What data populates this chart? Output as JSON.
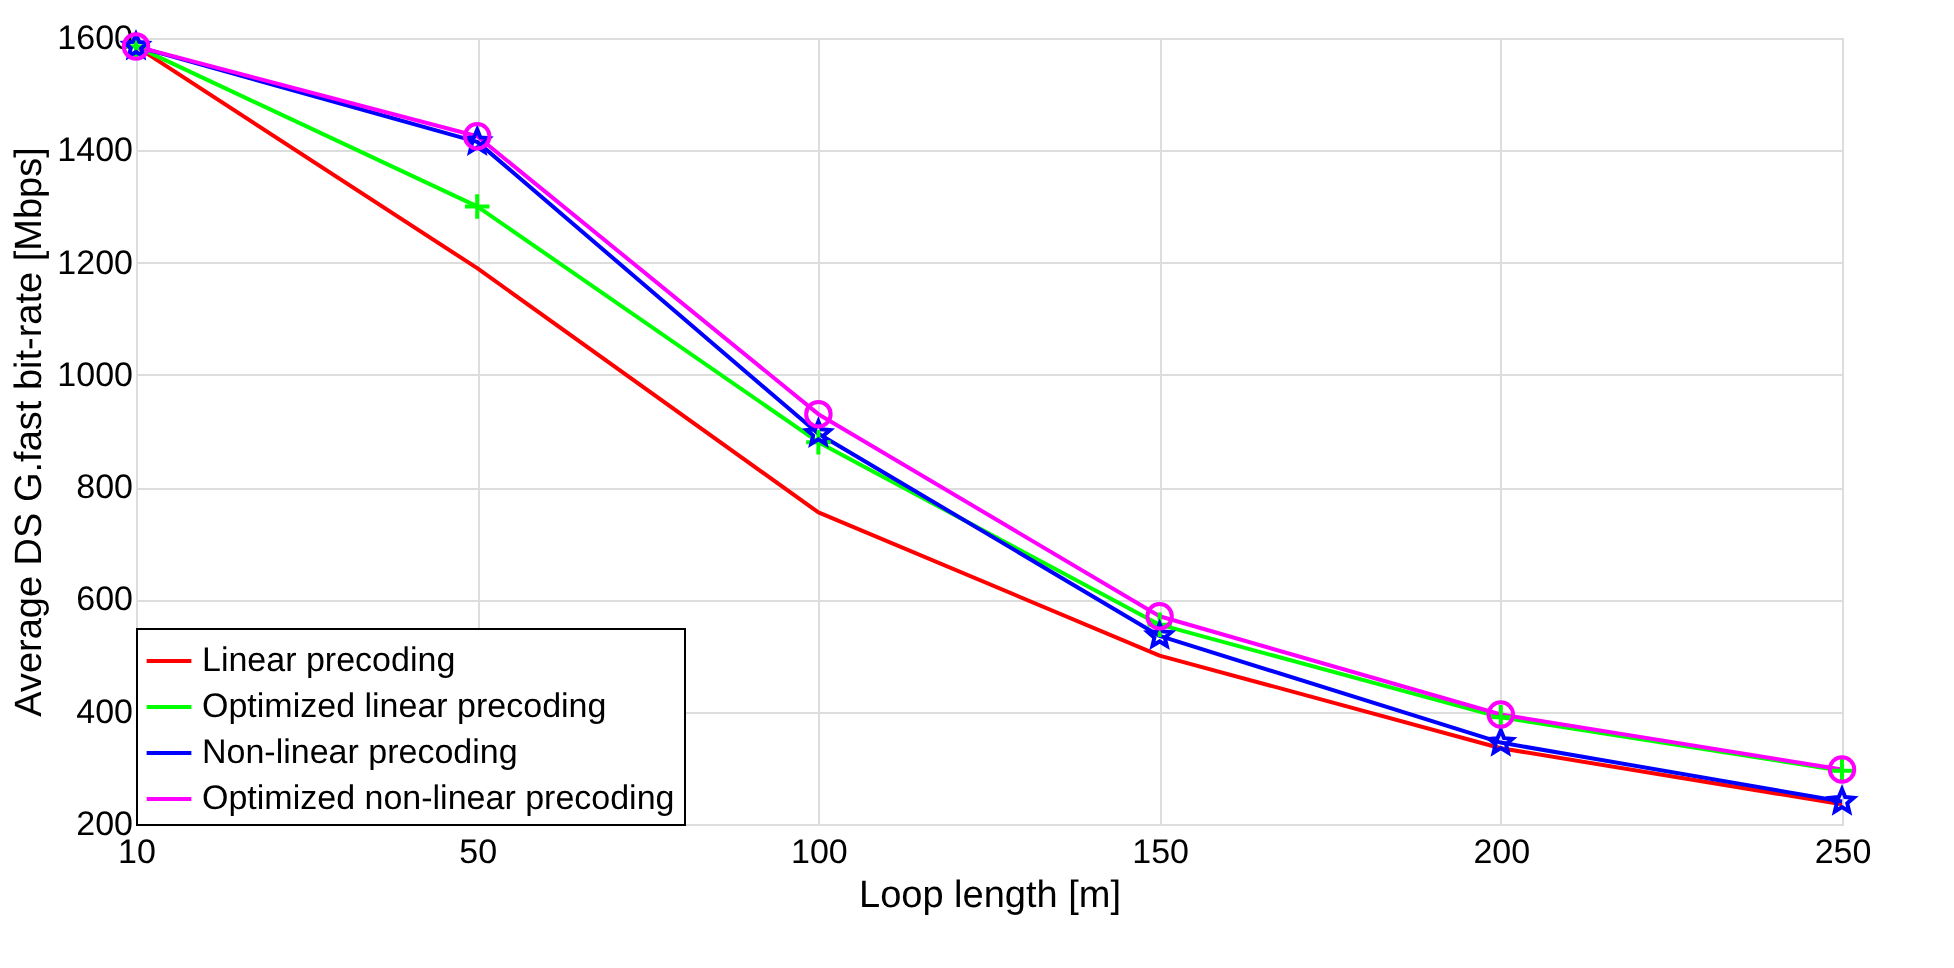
{
  "chart_data": {
    "type": "line",
    "xlabel": "Loop length [m]",
    "ylabel": "Average DS G.fast bit-rate [Mbps]",
    "categories": [
      "10",
      "50",
      "100",
      "150",
      "200",
      "250"
    ],
    "ylim": [
      200,
      1600
    ],
    "yticks": [
      200,
      400,
      600,
      800,
      1000,
      1200,
      1400,
      1600
    ],
    "grid": true,
    "legend": "bottom left",
    "line_style": "solid",
    "series": [
      {
        "name": "Linear precoding",
        "color": "#ff0000",
        "marker": "none",
        "values": [
          1585,
          1190,
          755,
          500,
          335,
          235
        ]
      },
      {
        "name": "Optimized linear precoding",
        "color": "#00ff00",
        "marker": "cross",
        "values": [
          1585,
          1300,
          880,
          555,
          390,
          295
        ]
      },
      {
        "name": "Non-linear precoding",
        "color": "#0000ff",
        "marker": "star",
        "values": [
          1585,
          1415,
          895,
          535,
          345,
          240
        ]
      },
      {
        "name": "Optimized non-linear precoding",
        "color": "#ff00ff",
        "marker": "circle",
        "values": [
          1585,
          1425,
          930,
          570,
          395,
          297
        ]
      }
    ]
  }
}
